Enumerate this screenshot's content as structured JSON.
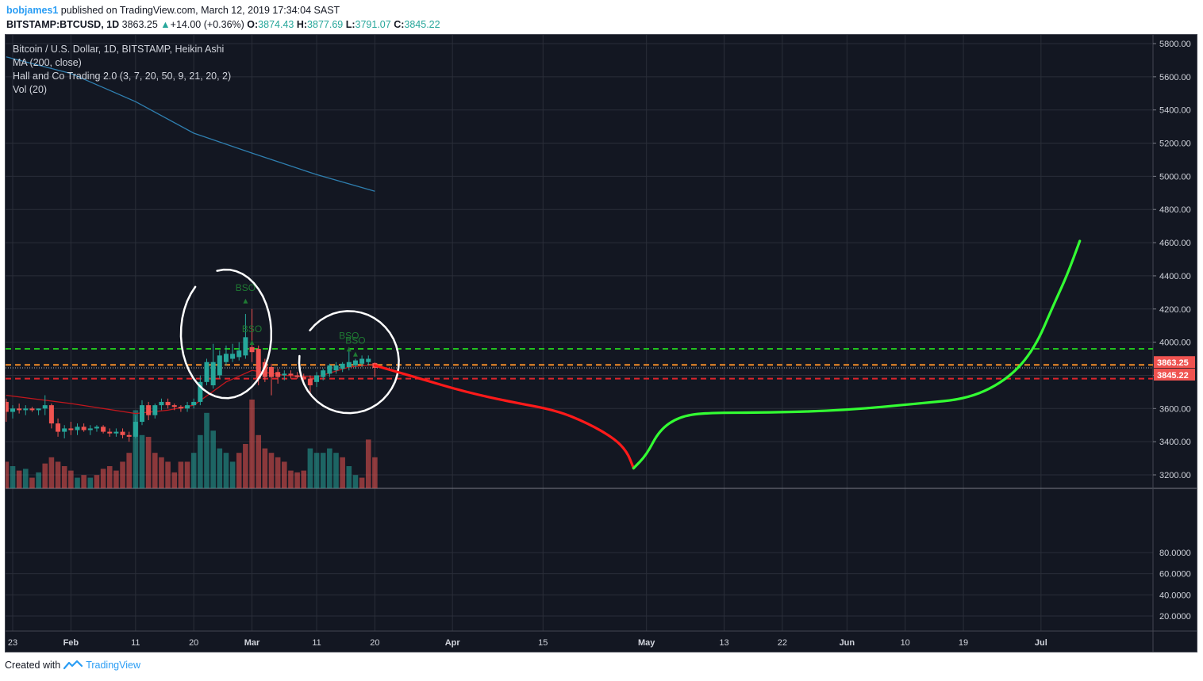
{
  "header": {
    "user": "bobjames1",
    "published_text": "published on TradingView.com, March 12, 2019 17:34:04 SAST",
    "symbol": "BITSTAMP:BTCUSD, 1D",
    "last": "3863.25",
    "change_arrow": "▲",
    "change": "+14.00 (+0.36%)",
    "open_label": "O:",
    "open": "3874.43",
    "high_label": "H:",
    "high": "3877.69",
    "low_label": "L:",
    "low": "3791.07",
    "close_label": "C:",
    "close": "3845.22"
  },
  "legend": {
    "line1": "Bitcoin / U.S. Dollar, 1D, BITSTAMP, Heikin Ashi",
    "line2": "MA (200, close)",
    "line3": "Hall and Co Trading 2.0 (3, 7, 20, 50, 9, 21, 20, 2)",
    "line4": "Vol (20)"
  },
  "footer": {
    "created_with": "Created with",
    "brand": "TradingView"
  },
  "colors": {
    "background": "#131722",
    "grid": "#2a2e39",
    "axis_text": "#d1d4dc",
    "up": "#26a69a",
    "down": "#ef5350",
    "vol_up": "#26a69a",
    "vol_down": "#ef5350",
    "ma200": "#2f7fb0",
    "wma": "#c2171d",
    "green_level": "#22c21e",
    "orange_level": "#f28c28",
    "red_level": "#e0242b",
    "drawing_red": "#ff1a1a",
    "drawing_green": "#33ff33",
    "circle": "#ffffff",
    "bso_text": "#1f7a33"
  },
  "chart_data": {
    "type": "candlestick",
    "price_axis": {
      "ticks": [
        "5800.00",
        "5600.00",
        "5400.00",
        "5200.00",
        "5000.00",
        "4800.00",
        "4600.00",
        "4400.00",
        "4200.00",
        "4000.00",
        "3800.00",
        "3600.00",
        "3400.00",
        "3200.00"
      ],
      "range": [
        3150,
        5860
      ],
      "label_last": "3863.25",
      "label_close": "3845.22"
    },
    "volume_axis": {
      "ticks": [
        "80.0000",
        "60.0000",
        "40.0000",
        "20.0000"
      ],
      "range": [
        0,
        100
      ]
    },
    "time_axis": {
      "ticks": [
        "23",
        "Feb",
        "11",
        "20",
        "Mar",
        "11",
        "20",
        "Apr",
        "15",
        "May",
        "13",
        "22",
        "Jun",
        "10",
        "19",
        "Jul"
      ],
      "tick_dates": [
        "2019-01-23",
        "2019-02-01",
        "2019-02-11",
        "2019-02-20",
        "2019-03-01",
        "2019-03-11",
        "2019-03-20",
        "2019-04-01",
        "2019-04-15",
        "2019-05-01",
        "2019-05-13",
        "2019-05-22",
        "2019-06-01",
        "2019-06-10",
        "2019-06-19",
        "2019-07-01"
      ]
    },
    "levels": [
      {
        "price": 3960,
        "color": "green"
      },
      {
        "price": 3863.25,
        "color": "orange"
      },
      {
        "price": 3845.22,
        "color": "dotted"
      },
      {
        "price": 3780,
        "color": "red"
      }
    ],
    "candles": [
      {
        "date": "2019-01-22",
        "o": 3640,
        "h": 3660,
        "l": 3520,
        "c": 3580
      },
      {
        "date": "2019-01-23",
        "o": 3580,
        "h": 3620,
        "l": 3540,
        "c": 3600
      },
      {
        "date": "2019-01-24",
        "o": 3600,
        "h": 3630,
        "l": 3570,
        "c": 3590
      },
      {
        "date": "2019-01-25",
        "o": 3590,
        "h": 3620,
        "l": 3560,
        "c": 3600
      },
      {
        "date": "2019-01-26",
        "o": 3600,
        "h": 3610,
        "l": 3580,
        "c": 3590
      },
      {
        "date": "2019-01-27",
        "o": 3590,
        "h": 3600,
        "l": 3560,
        "c": 3600
      },
      {
        "date": "2019-01-28",
        "o": 3600,
        "h": 3680,
        "l": 3560,
        "c": 3620
      },
      {
        "date": "2019-01-29",
        "o": 3620,
        "h": 3630,
        "l": 3480,
        "c": 3510
      },
      {
        "date": "2019-01-30",
        "o": 3510,
        "h": 3540,
        "l": 3430,
        "c": 3460
      },
      {
        "date": "2019-01-31",
        "o": 3460,
        "h": 3500,
        "l": 3420,
        "c": 3480
      },
      {
        "date": "2019-02-01",
        "o": 3480,
        "h": 3520,
        "l": 3440,
        "c": 3470
      },
      {
        "date": "2019-02-02",
        "o": 3470,
        "h": 3510,
        "l": 3440,
        "c": 3490
      },
      {
        "date": "2019-02-03",
        "o": 3490,
        "h": 3510,
        "l": 3460,
        "c": 3470
      },
      {
        "date": "2019-02-04",
        "o": 3470,
        "h": 3500,
        "l": 3440,
        "c": 3480
      },
      {
        "date": "2019-02-05",
        "o": 3480,
        "h": 3500,
        "l": 3460,
        "c": 3490
      },
      {
        "date": "2019-02-06",
        "o": 3490,
        "h": 3500,
        "l": 3450,
        "c": 3460
      },
      {
        "date": "2019-02-07",
        "o": 3460,
        "h": 3480,
        "l": 3430,
        "c": 3450
      },
      {
        "date": "2019-02-08",
        "o": 3450,
        "h": 3480,
        "l": 3430,
        "c": 3460
      },
      {
        "date": "2019-02-09",
        "o": 3460,
        "h": 3480,
        "l": 3420,
        "c": 3440
      },
      {
        "date": "2019-02-10",
        "o": 3440,
        "h": 3460,
        "l": 3400,
        "c": 3430
      },
      {
        "date": "2019-02-11",
        "o": 3430,
        "h": 3560,
        "l": 3420,
        "c": 3520
      },
      {
        "date": "2019-02-12",
        "o": 3520,
        "h": 3650,
        "l": 3500,
        "c": 3620
      },
      {
        "date": "2019-02-13",
        "o": 3620,
        "h": 3640,
        "l": 3530,
        "c": 3560
      },
      {
        "date": "2019-02-14",
        "o": 3560,
        "h": 3630,
        "l": 3540,
        "c": 3620
      },
      {
        "date": "2019-02-15",
        "o": 3620,
        "h": 3660,
        "l": 3590,
        "c": 3640
      },
      {
        "date": "2019-02-16",
        "o": 3640,
        "h": 3660,
        "l": 3600,
        "c": 3620
      },
      {
        "date": "2019-02-17",
        "o": 3620,
        "h": 3630,
        "l": 3590,
        "c": 3610
      },
      {
        "date": "2019-02-18",
        "o": 3610,
        "h": 3620,
        "l": 3580,
        "c": 3600
      },
      {
        "date": "2019-02-19",
        "o": 3600,
        "h": 3640,
        "l": 3580,
        "c": 3620
      },
      {
        "date": "2019-02-20",
        "o": 3620,
        "h": 3660,
        "l": 3600,
        "c": 3640
      },
      {
        "date": "2019-02-21",
        "o": 3640,
        "h": 3800,
        "l": 3620,
        "c": 3760
      },
      {
        "date": "2019-02-22",
        "o": 3760,
        "h": 3900,
        "l": 3740,
        "c": 3880
      },
      {
        "date": "2019-02-23",
        "o": 3740,
        "h": 3990,
        "l": 3720,
        "c": 3880
      },
      {
        "date": "2019-02-24",
        "o": 3800,
        "h": 3950,
        "l": 3780,
        "c": 3920
      },
      {
        "date": "2019-02-25",
        "o": 3880,
        "h": 3980,
        "l": 3860,
        "c": 3930
      },
      {
        "date": "2019-02-26",
        "o": 3900,
        "h": 3990,
        "l": 3880,
        "c": 3930
      },
      {
        "date": "2019-02-27",
        "o": 3910,
        "h": 4000,
        "l": 3890,
        "c": 3950
      },
      {
        "date": "2019-02-28",
        "o": 3920,
        "h": 4170,
        "l": 3900,
        "c": 4030
      },
      {
        "date": "2019-03-01",
        "o": 3970,
        "h": 4200,
        "l": 3880,
        "c": 3940
      },
      {
        "date": "2019-03-02",
        "o": 3960,
        "h": 3980,
        "l": 3740,
        "c": 3780
      },
      {
        "date": "2019-03-03",
        "o": 3880,
        "h": 3900,
        "l": 3760,
        "c": 3790
      },
      {
        "date": "2019-03-04",
        "o": 3850,
        "h": 3870,
        "l": 3680,
        "c": 3790
      },
      {
        "date": "2019-03-05",
        "o": 3820,
        "h": 3840,
        "l": 3750,
        "c": 3790
      },
      {
        "date": "2019-03-06",
        "o": 3800,
        "h": 3830,
        "l": 3770,
        "c": 3810
      },
      {
        "date": "2019-03-07",
        "o": 3810,
        "h": 3830,
        "l": 3780,
        "c": 3800
      },
      {
        "date": "2019-03-08",
        "o": 3800,
        "h": 3820,
        "l": 3780,
        "c": 3790
      },
      {
        "date": "2019-03-09",
        "o": 3790,
        "h": 3810,
        "l": 3770,
        "c": 3780
      },
      {
        "date": "2019-03-10",
        "o": 3780,
        "h": 3800,
        "l": 3680,
        "c": 3740
      },
      {
        "date": "2019-03-11",
        "o": 3760,
        "h": 3820,
        "l": 3730,
        "c": 3800
      },
      {
        "date": "2019-03-12",
        "o": 3790,
        "h": 3840,
        "l": 3770,
        "c": 3830
      },
      {
        "date": "2019-03-13",
        "o": 3810,
        "h": 3870,
        "l": 3790,
        "c": 3860
      },
      {
        "date": "2019-03-14",
        "o": 3830,
        "h": 3880,
        "l": 3810,
        "c": 3860
      },
      {
        "date": "2019-03-15",
        "o": 3840,
        "h": 3880,
        "l": 3820,
        "c": 3870
      },
      {
        "date": "2019-03-16",
        "o": 3850,
        "h": 3960,
        "l": 3830,
        "c": 3880
      },
      {
        "date": "2019-03-17",
        "o": 3860,
        "h": 3900,
        "l": 3840,
        "c": 3890
      },
      {
        "date": "2019-03-18",
        "o": 3870,
        "h": 3920,
        "l": 3850,
        "c": 3900
      },
      {
        "date": "2019-03-19",
        "o": 3880,
        "h": 3920,
        "l": 3860,
        "c": 3900
      },
      {
        "date": "2019-03-20",
        "o": 3874.43,
        "h": 3877.69,
        "l": 3791.07,
        "c": 3845.22
      }
    ],
    "volume": [
      {
        "v": 30,
        "up": false
      },
      {
        "v": 25,
        "up": true
      },
      {
        "v": 20,
        "up": false
      },
      {
        "v": 22,
        "up": true
      },
      {
        "v": 12,
        "up": false
      },
      {
        "v": 18,
        "up": true
      },
      {
        "v": 28,
        "up": false
      },
      {
        "v": 35,
        "up": false
      },
      {
        "v": 30,
        "up": false
      },
      {
        "v": 25,
        "up": false
      },
      {
        "v": 20,
        "up": false
      },
      {
        "v": 12,
        "up": true
      },
      {
        "v": 15,
        "up": false
      },
      {
        "v": 12,
        "up": true
      },
      {
        "v": 15,
        "up": false
      },
      {
        "v": 22,
        "up": false
      },
      {
        "v": 25,
        "up": false
      },
      {
        "v": 20,
        "up": false
      },
      {
        "v": 30,
        "up": false
      },
      {
        "v": 40,
        "up": false
      },
      {
        "v": 88,
        "up": true
      },
      {
        "v": 60,
        "up": true
      },
      {
        "v": 58,
        "up": false
      },
      {
        "v": 40,
        "up": false
      },
      {
        "v": 35,
        "up": false
      },
      {
        "v": 30,
        "up": false
      },
      {
        "v": 18,
        "up": false
      },
      {
        "v": 30,
        "up": false
      },
      {
        "v": 30,
        "up": false
      },
      {
        "v": 40,
        "up": true
      },
      {
        "v": 60,
        "up": true
      },
      {
        "v": 85,
        "up": true
      },
      {
        "v": 65,
        "up": true
      },
      {
        "v": 45,
        "up": true
      },
      {
        "v": 40,
        "up": true
      },
      {
        "v": 30,
        "up": true
      },
      {
        "v": 40,
        "up": false
      },
      {
        "v": 50,
        "up": false
      },
      {
        "v": 100,
        "up": false
      },
      {
        "v": 60,
        "up": false
      },
      {
        "v": 45,
        "up": false
      },
      {
        "v": 40,
        "up": false
      },
      {
        "v": 35,
        "up": false
      },
      {
        "v": 30,
        "up": false
      },
      {
        "v": 20,
        "up": false
      },
      {
        "v": 18,
        "up": false
      },
      {
        "v": 20,
        "up": false
      },
      {
        "v": 45,
        "up": true
      },
      {
        "v": 40,
        "up": true
      },
      {
        "v": 40,
        "up": true
      },
      {
        "v": 45,
        "up": true
      },
      {
        "v": 40,
        "up": true
      },
      {
        "v": 35,
        "up": false
      },
      {
        "v": 25,
        "up": true
      },
      {
        "v": 15,
        "up": true
      },
      {
        "v": 12,
        "up": false
      },
      {
        "v": 55,
        "up": false
      },
      {
        "v": 35,
        "up": false
      }
    ],
    "ma200": [
      {
        "date": "2019-01-22",
        "v": 5720
      },
      {
        "date": "2019-02-01",
        "v": 5620
      },
      {
        "date": "2019-02-11",
        "v": 5450
      },
      {
        "date": "2019-02-20",
        "v": 5260
      },
      {
        "date": "2019-03-01",
        "v": 5140
      },
      {
        "date": "2019-03-11",
        "v": 5010
      },
      {
        "date": "2019-03-20",
        "v": 4910
      }
    ],
    "wma": [
      {
        "date": "2019-01-22",
        "v": 3680
      },
      {
        "date": "2019-02-01",
        "v": 3630
      },
      {
        "date": "2019-02-11",
        "v": 3570
      },
      {
        "date": "2019-02-16",
        "v": 3590
      },
      {
        "date": "2019-02-20",
        "v": 3620
      },
      {
        "date": "2019-02-25",
        "v": 3760
      },
      {
        "date": "2019-03-01",
        "v": 3830
      },
      {
        "date": "2019-03-06",
        "v": 3800
      },
      {
        "date": "2019-03-11",
        "v": 3790
      },
      {
        "date": "2019-03-16",
        "v": 3850
      },
      {
        "date": "2019-03-20",
        "v": 3865
      }
    ],
    "annotations": [
      {
        "text": "BSO",
        "date": "2019-02-28",
        "price": 4310
      },
      {
        "text": "BSO",
        "date": "2019-03-01",
        "price": 4060
      },
      {
        "text": "BSO",
        "date": "2019-03-16",
        "price": 4020
      },
      {
        "text": "BSO",
        "date": "2019-03-17",
        "price": 3990
      }
    ],
    "drawing_red": [
      {
        "date": "2019-03-20",
        "v": 3860
      },
      {
        "date": "2019-03-27",
        "v": 3780
      },
      {
        "date": "2019-04-03",
        "v": 3700
      },
      {
        "date": "2019-04-10",
        "v": 3640
      },
      {
        "date": "2019-04-17",
        "v": 3590
      },
      {
        "date": "2019-04-22",
        "v": 3510
      },
      {
        "date": "2019-04-26",
        "v": 3420
      },
      {
        "date": "2019-04-28",
        "v": 3340
      },
      {
        "date": "2019-04-29",
        "v": 3240
      }
    ],
    "drawing_green": [
      {
        "date": "2019-04-29",
        "v": 3240
      },
      {
        "date": "2019-05-01",
        "v": 3320
      },
      {
        "date": "2019-05-03",
        "v": 3470
      },
      {
        "date": "2019-05-06",
        "v": 3550
      },
      {
        "date": "2019-05-10",
        "v": 3575
      },
      {
        "date": "2019-05-20",
        "v": 3575
      },
      {
        "date": "2019-06-01",
        "v": 3590
      },
      {
        "date": "2019-06-12",
        "v": 3630
      },
      {
        "date": "2019-06-20",
        "v": 3660
      },
      {
        "date": "2019-06-26",
        "v": 3780
      },
      {
        "date": "2019-06-30",
        "v": 3960
      },
      {
        "date": "2019-07-03",
        "v": 4230
      },
      {
        "date": "2019-07-05",
        "v": 4400
      },
      {
        "date": "2019-07-07",
        "v": 4610
      }
    ],
    "circles": [
      {
        "date": "2019-02-25",
        "price": 4050,
        "rdays": 8,
        "rprice": 340
      },
      {
        "date": "2019-03-16",
        "price": 3880,
        "rdays": 9,
        "rprice": 260
      }
    ]
  }
}
